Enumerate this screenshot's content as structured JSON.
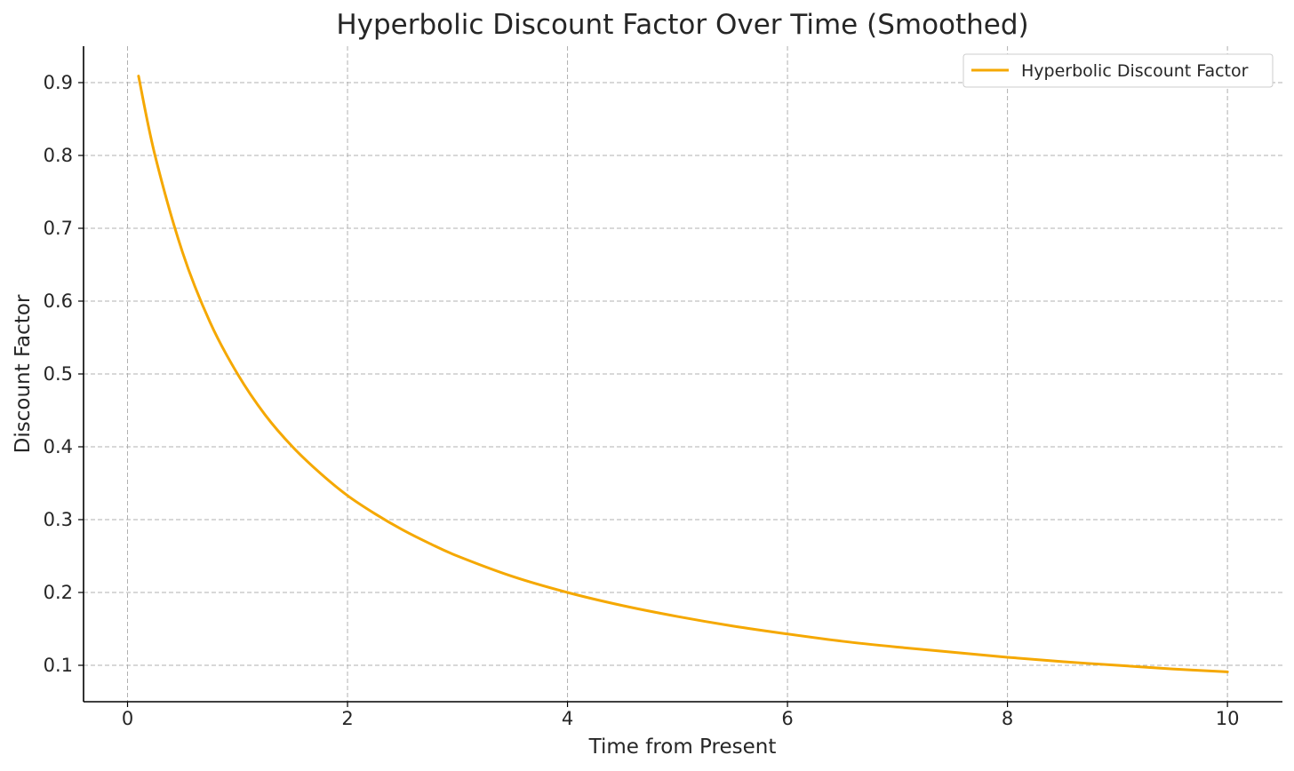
{
  "chart_data": {
    "type": "line",
    "title": "Hyperbolic Discount Factor Over Time (Smoothed)",
    "xlabel": "Time from Present",
    "ylabel": "Discount Factor",
    "xlim": [
      -0.4,
      10.5
    ],
    "ylim": [
      0.05,
      0.95
    ],
    "xticks": [
      0,
      2,
      4,
      6,
      8,
      10
    ],
    "yticks": [
      0.1,
      0.2,
      0.3,
      0.4,
      0.5,
      0.6,
      0.7,
      0.8,
      0.9
    ],
    "grid": true,
    "legend_position": "top-right",
    "series": [
      {
        "name": "Hyperbolic Discount Factor",
        "color": "#f5a800",
        "x": [
          0.1,
          0.25,
          0.5,
          0.75,
          1,
          1.25,
          1.5,
          1.75,
          2,
          2.25,
          2.5,
          2.75,
          3,
          3.5,
          4,
          4.5,
          5,
          5.5,
          6,
          6.5,
          7,
          7.5,
          8,
          8.5,
          9,
          9.5,
          10
        ],
        "y": [
          0.909,
          0.8,
          0.667,
          0.571,
          0.5,
          0.444,
          0.4,
          0.364,
          0.333,
          0.308,
          0.286,
          0.267,
          0.25,
          0.222,
          0.2,
          0.182,
          0.167,
          0.154,
          0.143,
          0.133,
          0.125,
          0.118,
          0.111,
          0.105,
          0.1,
          0.095,
          0.091
        ]
      }
    ]
  }
}
